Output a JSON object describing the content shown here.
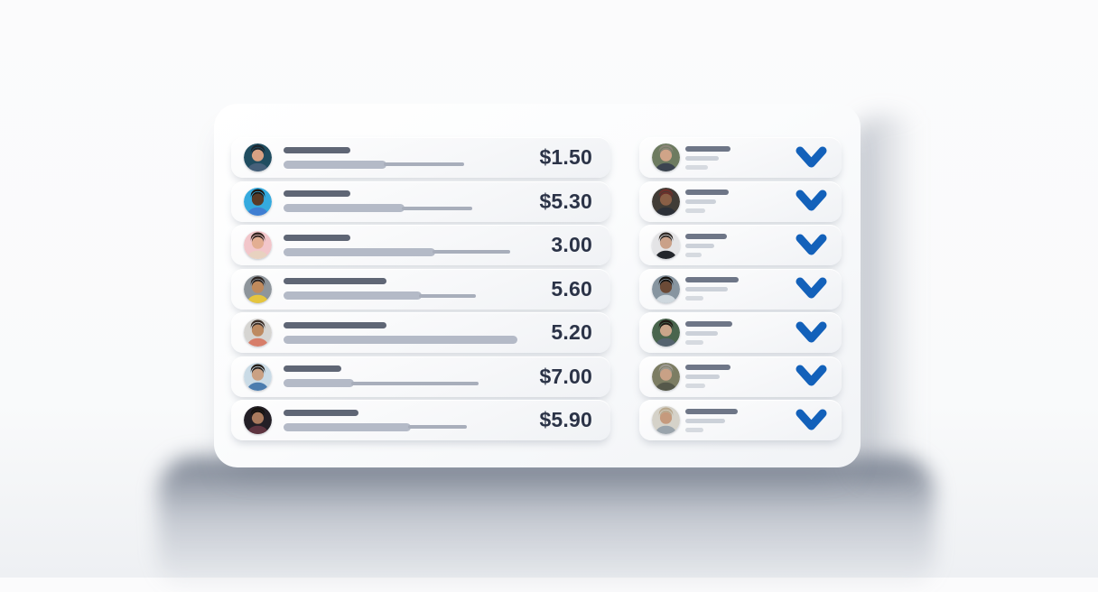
{
  "colors": {
    "accent_blue": "#1361ba",
    "price_text": "#2b3347",
    "skeleton_dark": "#5f6675",
    "skeleton_light": "#b4bac7",
    "skeleton_right_dark": "#6e7687",
    "skeleton_right_light": "#ccd1d9"
  },
  "left_list": {
    "rows": [
      {
        "price": "$1.50",
        "bars": {
          "l1": 74,
          "l2a": 114,
          "l2b": 89
        },
        "avatar": {
          "bg": "#204d60",
          "skin": "#d8a183",
          "hair": "#1e262e",
          "shirt": "#46607a"
        }
      },
      {
        "price": "$5.30",
        "bars": {
          "l1": 74,
          "l2a": 134,
          "l2b": 78
        },
        "avatar": {
          "bg": "#35aade",
          "skin": "#5a3a26",
          "hair": "#1c140e",
          "shirt": "#3f7ed2"
        }
      },
      {
        "price": "3.00",
        "bars": {
          "l1": 74,
          "l2a": 168,
          "l2b": 86
        },
        "avatar": {
          "bg": "#f2c6ca",
          "skin": "#e3ae92",
          "hair": "#33241e",
          "shirt": "#e8d2c0"
        }
      },
      {
        "price": "5.60",
        "bars": {
          "l1": 114,
          "l2a": 153,
          "l2b": 63
        },
        "avatar": {
          "bg": "#8e959b",
          "skin": "#c08a5c",
          "hair": "#2a2320",
          "shirt": "#e5c53e"
        }
      },
      {
        "price": "5.20",
        "bars": {
          "l1": 114,
          "l2a": 259,
          "l2b": 0
        },
        "avatar": {
          "bg": "#d6d5d2",
          "skin": "#bd8a61",
          "hair": "#3a2d26",
          "shirt": "#d77e6a"
        }
      },
      {
        "price": "$7.00",
        "bars": {
          "l1": 64,
          "l2a": 78,
          "l2b": 141
        },
        "avatar": {
          "bg": "#cadbe6",
          "skin": "#caa184",
          "hair": "#241d18",
          "shirt": "#4b7cae"
        }
      },
      {
        "price": "$5.90",
        "bars": {
          "l1": 83,
          "l2a": 141,
          "l2b": 65
        },
        "avatar": {
          "bg": "#231f26",
          "skin": "#a97a5e",
          "hair": "#15120f",
          "shirt": "#5e3440"
        }
      }
    ]
  },
  "right_list": {
    "rows": [
      {
        "bars": {
          "l1": 50,
          "l2": 37,
          "l3": 25
        },
        "checked": true,
        "avatar": {
          "bg": "#6d7b60",
          "skin": "#d0a488",
          "hair": "#8a8578",
          "shirt": "#3c4450"
        }
      },
      {
        "bars": {
          "l1": 48,
          "l2": 34,
          "l3": 22
        },
        "checked": true,
        "avatar": {
          "bg": "#413c36",
          "skin": "#8a5f46",
          "hair": "#6e2f2a",
          "shirt": "#2c3038"
        }
      },
      {
        "bars": {
          "l1": 46,
          "l2": 32,
          "l3": 18
        },
        "checked": true,
        "avatar": {
          "bg": "#e4e4e6",
          "skin": "#caa189",
          "hair": "#2e2824",
          "shirt": "#23262c"
        }
      },
      {
        "bars": {
          "l1": 59,
          "l2": 47,
          "l3": 20
        },
        "checked": true,
        "avatar": {
          "bg": "#8795a0",
          "skin": "#6b4a36",
          "hair": "#14100d",
          "shirt": "#cfd8de"
        }
      },
      {
        "bars": {
          "l1": 52,
          "l2": 36,
          "l3": 20
        },
        "checked": true,
        "avatar": {
          "bg": "#49654d",
          "skin": "#caa58a",
          "hair": "#211a16",
          "shirt": "#55636f"
        }
      },
      {
        "bars": {
          "l1": 50,
          "l2": 38,
          "l3": 22
        },
        "checked": true,
        "avatar": {
          "bg": "#7c7d63",
          "skin": "#c9a186",
          "hair": "#9b9890",
          "shirt": "#55584a"
        }
      },
      {
        "bars": {
          "l1": 58,
          "l2": 44,
          "l3": 20
        },
        "checked": true,
        "avatar": {
          "bg": "#d5d2c9",
          "skin": "#c59a7d",
          "hair": "#b9a98e",
          "shirt": "#9aa4ac"
        }
      }
    ]
  }
}
